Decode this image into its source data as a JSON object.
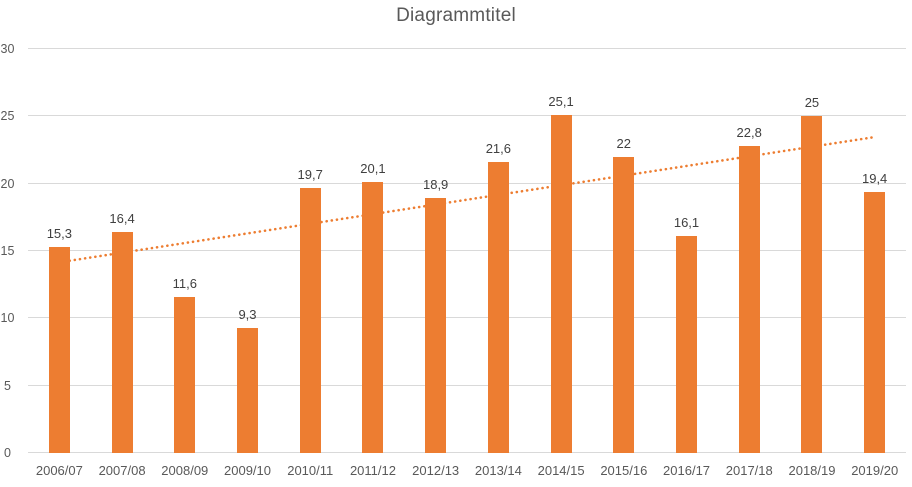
{
  "title": "Diagrammtitel",
  "colors": {
    "bar": "#ED7D31",
    "trendline": "#ED7D31",
    "gridline": "#D9D9D9",
    "axis_text": "#595959",
    "data_label_text": "#404040",
    "title_text": "#595959",
    "background": "#FFFFFF"
  },
  "chart_data": {
    "type": "bar",
    "title": "Diagrammtitel",
    "categories": [
      "2006/07",
      "2007/08",
      "2008/09",
      "2009/10",
      "2010/11",
      "2011/12",
      "2012/13",
      "2013/14",
      "2014/15",
      "2015/16",
      "2016/17",
      "2017/18",
      "2018/19",
      "2019/20"
    ],
    "values": [
      15.3,
      16.4,
      11.6,
      9.3,
      19.7,
      20.1,
      18.9,
      21.6,
      25.1,
      22,
      16.1,
      22.8,
      25,
      19.4
    ],
    "value_labels": [
      "15,3",
      "16,4",
      "11,6",
      "9,3",
      "19,7",
      "20,1",
      "18,9",
      "21,6",
      "25,1",
      "22",
      "16,1",
      "22,8",
      "25",
      "19,4"
    ],
    "xlabel": "",
    "ylabel": "",
    "ylim": [
      0,
      30
    ],
    "yticks": [
      0,
      5,
      10,
      15,
      20,
      25,
      30
    ],
    "grid": "horizontal",
    "legend": "none",
    "decimal_separator": ",",
    "trendline": {
      "type": "linear",
      "style": "dotted",
      "start_value": 14.16,
      "end_value": 23.46
    }
  }
}
